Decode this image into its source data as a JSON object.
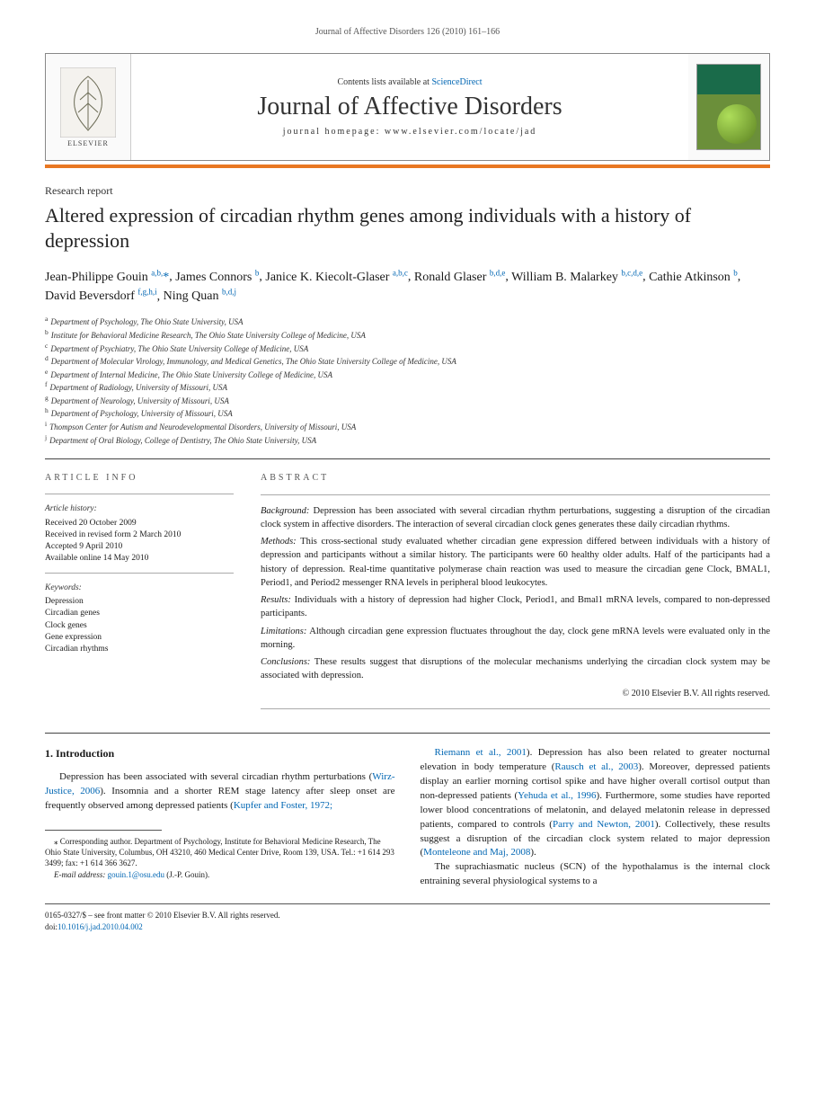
{
  "running_head": "Journal of Affective Disorders 126 (2010) 161–166",
  "masthead": {
    "publisher": "ELSEVIER",
    "contents_line_prefix": "Contents lists available at ",
    "contents_link": "ScienceDirect",
    "journal_name": "Journal of Affective Disorders",
    "homepage_prefix": "journal homepage: ",
    "homepage_url": "www.elsevier.com/locate/jad"
  },
  "article": {
    "type": "Research report",
    "title": "Altered expression of circadian rhythm genes among individuals with a history of depression"
  },
  "authors": [
    {
      "name": "Jean-Philippe Gouin",
      "aff": "a,b,",
      "star": true
    },
    {
      "name": "James Connors",
      "aff": "b"
    },
    {
      "name": "Janice K. Kiecolt-Glaser",
      "aff": "a,b,c"
    },
    {
      "name": "Ronald Glaser",
      "aff": "b,d,e"
    },
    {
      "name": "William B. Malarkey",
      "aff": "b,c,d,e"
    },
    {
      "name": "Cathie Atkinson",
      "aff": "b"
    },
    {
      "name": "David Beversdorf",
      "aff": "f,g,h,i"
    },
    {
      "name": "Ning Quan",
      "aff": "b,d,j"
    }
  ],
  "affiliations": [
    {
      "key": "a",
      "text": "Department of Psychology, The Ohio State University, USA"
    },
    {
      "key": "b",
      "text": "Institute for Behavioral Medicine Research, The Ohio State University College of Medicine, USA"
    },
    {
      "key": "c",
      "text": "Department of Psychiatry, The Ohio State University College of Medicine, USA"
    },
    {
      "key": "d",
      "text": "Department of Molecular Virology, Immunology, and Medical Genetics, The Ohio State University College of Medicine, USA"
    },
    {
      "key": "e",
      "text": "Department of Internal Medicine, The Ohio State University College of Medicine, USA"
    },
    {
      "key": "f",
      "text": "Department of Radiology, University of Missouri, USA"
    },
    {
      "key": "g",
      "text": "Department of Neurology, University of Missouri, USA"
    },
    {
      "key": "h",
      "text": "Department of Psychology, University of Missouri, USA"
    },
    {
      "key": "i",
      "text": "Thompson Center for Autism and Neurodevelopmental Disorders, University of Missouri, USA"
    },
    {
      "key": "j",
      "text": "Department of Oral Biology, College of Dentistry, The Ohio State University, USA"
    }
  ],
  "article_info": {
    "heading": "ARTICLE INFO",
    "history_head": "Article history:",
    "history": [
      "Received 20 October 2009",
      "Received in revised form 2 March 2010",
      "Accepted 9 April 2010",
      "Available online 14 May 2010"
    ],
    "keywords_head": "Keywords:",
    "keywords": [
      "Depression",
      "Circadian genes",
      "Clock genes",
      "Gene expression",
      "Circadian rhythms"
    ]
  },
  "abstract": {
    "heading": "ABSTRACT",
    "sections": [
      {
        "label": "Background:",
        "text": "Depression has been associated with several circadian rhythm perturbations, suggesting a disruption of the circadian clock system in affective disorders. The interaction of several circadian clock genes generates these daily circadian rhythms."
      },
      {
        "label": "Methods:",
        "text": "This cross-sectional study evaluated whether circadian gene expression differed between individuals with a history of depression and participants without a similar history. The participants were 60 healthy older adults. Half of the participants had a history of depression. Real-time quantitative polymerase chain reaction was used to measure the circadian gene Clock, BMAL1, Period1, and Period2 messenger RNA levels in peripheral blood leukocytes."
      },
      {
        "label": "Results:",
        "text": "Individuals with a history of depression had higher Clock, Period1, and Bmal1 mRNA levels, compared to non-depressed participants."
      },
      {
        "label": "Limitations:",
        "text": "Although circadian gene expression fluctuates throughout the day, clock gene mRNA levels were evaluated only in the morning."
      },
      {
        "label": "Conclusions:",
        "text": "These results suggest that disruptions of the molecular mechanisms underlying the circadian clock system may be associated with depression."
      }
    ],
    "copyright": "© 2010 Elsevier B.V. All rights reserved."
  },
  "intro": {
    "heading": "1. Introduction",
    "col1_para": "Depression has been associated with several circadian rhythm perturbations (",
    "col1_ref1": "Wirz-Justice, 2006",
    "col1_para_b": "). Insomnia and a shorter REM stage latency after sleep onset are frequently observed among depressed patients (",
    "col1_ref2": "Kupfer and Foster, 1972;",
    "col2_ref1": "Riemann et al., 2001",
    "col2_a": "). Depression has also been related to greater nocturnal elevation in body temperature (",
    "col2_ref2": "Rausch et al., 2003",
    "col2_b": "). Moreover, depressed patients display an earlier morning cortisol spike and have higher overall cortisol output than non-depressed patients (",
    "col2_ref3": "Yehuda et al., 1996",
    "col2_c": "). Furthermore, some studies have reported lower blood concentrations of melatonin, and delayed melatonin release in depressed patients, compared to controls (",
    "col2_ref4": "Parry and Newton, 2001",
    "col2_d": "). Collectively, these results suggest a disruption of the circadian clock system related to major depression (",
    "col2_ref5": "Monteleone and Maj, 2008",
    "col2_e": ").",
    "col2_para2": "The suprachiasmatic nucleus (SCN) of the hypothalamus is the internal clock entraining several physiological systems to a"
  },
  "footnote": {
    "corr": "⁎ Corresponding author. Department of Psychology, Institute for Behavioral Medicine Research, The Ohio State University, Columbus, OH 43210, 460 Medical Center Drive, Room 139, USA. Tel.: +1 614 293 3499; fax: +1 614 366 3627.",
    "email_label": "E-mail address:",
    "email": "gouin.1@osu.edu",
    "email_suffix": "(J.-P. Gouin)."
  },
  "footer": {
    "line1": "0165-0327/$ – see front matter © 2010 Elsevier B.V. All rights reserved.",
    "doi_label": "doi:",
    "doi": "10.1016/j.jad.2010.04.002"
  },
  "colors": {
    "orange_bar": "#e87722",
    "link": "#0066b3",
    "text": "#1a1a1a"
  }
}
